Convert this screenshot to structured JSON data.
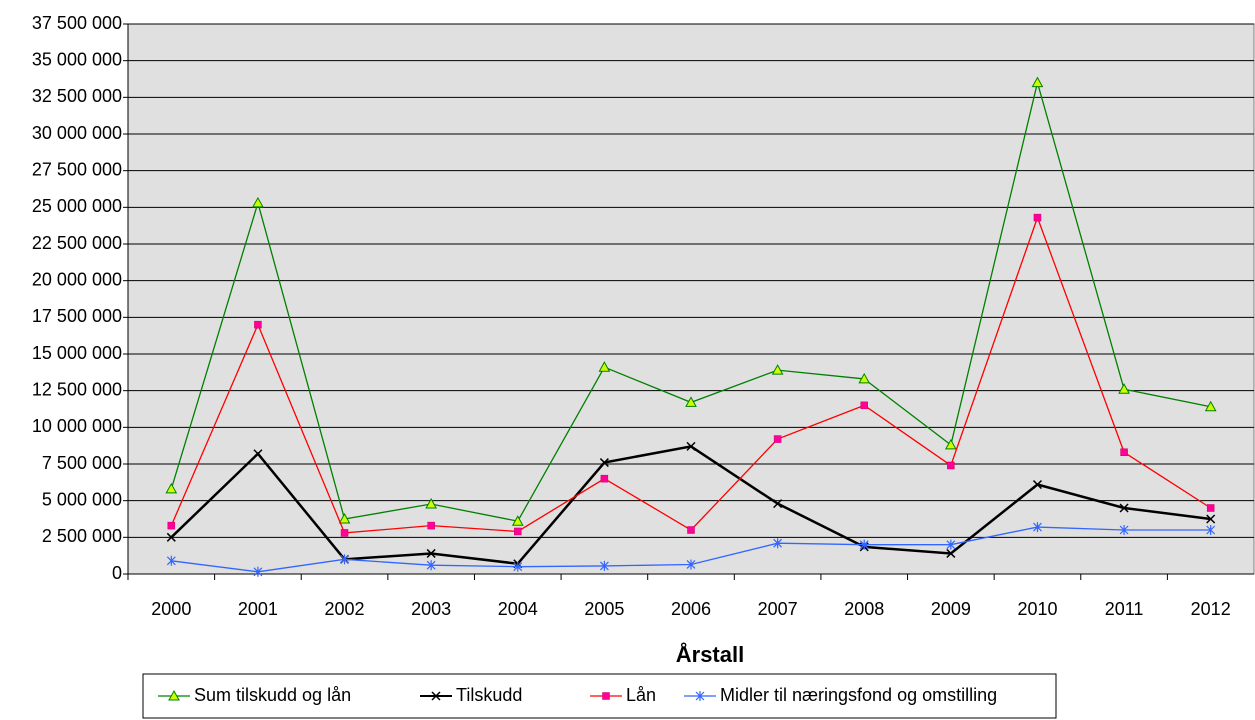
{
  "chart_data": {
    "type": "line",
    "x_label": "Årstall",
    "categories": [
      "2000",
      "2001",
      "2002",
      "2003",
      "2004",
      "2005",
      "2006",
      "2007",
      "2008",
      "2009",
      "2010",
      "2011",
      "2012"
    ],
    "series": [
      {
        "name": "Sum tilskudd og lån",
        "color": "#008000",
        "marker": "triangle",
        "marker_color": "#ccff00",
        "values": [
          5800000,
          25300000,
          3750000,
          4770000,
          3600000,
          14100000,
          11700000,
          13900000,
          13300000,
          8800000,
          33500000,
          12600000,
          11400000
        ]
      },
      {
        "name": "Tilskudd",
        "color": "#000000",
        "marker": "x",
        "marker_color": "#000000",
        "values": [
          2500000,
          8200000,
          1000000,
          1400000,
          700000,
          7600000,
          8700000,
          4800000,
          1850000,
          1400000,
          6100000,
          4500000,
          3750000
        ]
      },
      {
        "name": "Lån",
        "color": "#ff0000",
        "marker": "square",
        "marker_color": "#ff0099",
        "values": [
          3300000,
          17000000,
          2800000,
          3300000,
          2900000,
          6500000,
          3000000,
          9200000,
          11500000,
          7400000,
          24300000,
          8300000,
          4500000
        ]
      },
      {
        "name": "Midler til næringsfond og omstilling",
        "color": "#3366ff",
        "marker": "star",
        "marker_color": "#3366ff",
        "values": [
          900000,
          150000,
          1000000,
          600000,
          500000,
          550000,
          650000,
          2100000,
          2000000,
          2000000,
          3200000,
          3000000,
          3000000
        ]
      }
    ],
    "ylim": [
      0,
      37500000
    ],
    "yticks": [
      0,
      {
        "value": 2500000,
        "label": "2 500 000"
      },
      {
        "value": 5000000,
        "label": "5 000 000"
      },
      {
        "value": 7500000,
        "label": "7 500 000"
      },
      {
        "value": 10000000,
        "label": "10 000 000"
      },
      {
        "value": 12500000,
        "label": "12 500 000"
      },
      {
        "value": 15000000,
        "label": "15 000 000"
      },
      {
        "value": 17500000,
        "label": "17 500 000"
      },
      {
        "value": 20000000,
        "label": "20 000 000"
      },
      {
        "value": 22500000,
        "label": "22 500 000"
      },
      {
        "value": 25000000,
        "label": "25 000 000"
      },
      {
        "value": 27500000,
        "label": "27 500 000"
      },
      {
        "value": 30000000,
        "label": "30 000 000"
      },
      {
        "value": 32500000,
        "label": "32 500 000"
      },
      {
        "value": 35000000,
        "label": "35 000 000"
      },
      {
        "value": 37500000,
        "label": "37 500 000"
      }
    ],
    "grid": true,
    "legend": "bottom"
  }
}
